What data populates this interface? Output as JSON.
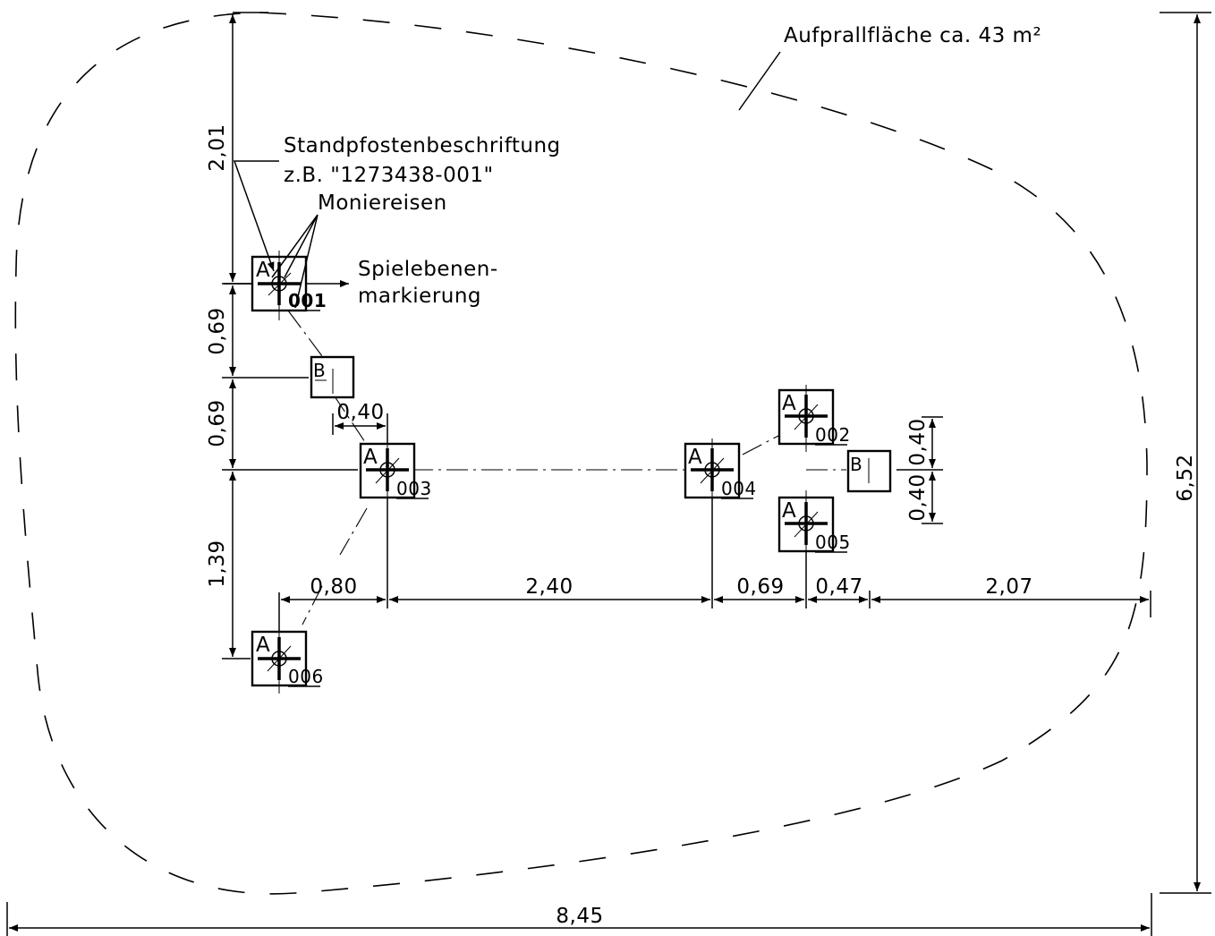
{
  "labels": {
    "impact_area": "Aufprallfläche ca. 43 m²",
    "post_label_title": "Standpfostenbeschriftung",
    "post_label_example": "z.B. \"1273438-001\"",
    "rebar": "Moniereisen",
    "play_level_line1": "Spielebenen-",
    "play_level_line2": "markierung"
  },
  "posts": [
    {
      "type": "A",
      "number": "001"
    },
    {
      "type": "A",
      "number": "002"
    },
    {
      "type": "A",
      "number": "003"
    },
    {
      "type": "A",
      "number": "004"
    },
    {
      "type": "A",
      "number": "005"
    },
    {
      "type": "A",
      "number": "006"
    }
  ],
  "b_markers": [
    "B",
    "B"
  ],
  "dimensions": {
    "vertical_left": [
      "2,01",
      "0,69",
      "0,69",
      "1,39"
    ],
    "horizontal_row": [
      "0,80",
      "2,40",
      "0,69",
      "0,47",
      "2,07"
    ],
    "b_offset": "0,40",
    "right_small": [
      "0,40",
      "0,40"
    ],
    "total_height": "6,52",
    "total_width": "8,45"
  }
}
